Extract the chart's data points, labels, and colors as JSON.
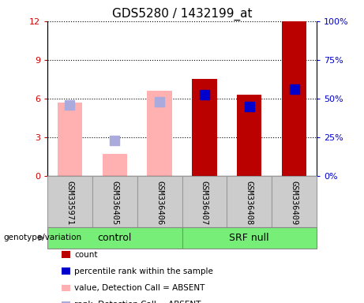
{
  "title": "GDS5280 / 1432199_at",
  "samples": [
    "GSM335971",
    "GSM336405",
    "GSM336406",
    "GSM336407",
    "GSM336408",
    "GSM336409"
  ],
  "ylim_left": [
    0,
    12
  ],
  "yticks_left": [
    0,
    3,
    6,
    9,
    12
  ],
  "ylim_right": [
    0,
    100
  ],
  "yticks_right": [
    0,
    25,
    50,
    75,
    100
  ],
  "left_axis_color": "#cc0000",
  "right_axis_color": "#0000cc",
  "count_color": "#bb0000",
  "rank_color": "#0000cc",
  "absent_value_color": "#ffb0b0",
  "absent_rank_color": "#aaaadd",
  "count_values": [
    0,
    0,
    0,
    7.5,
    6.3,
    12.0
  ],
  "rank_values_pct": [
    0,
    0,
    0,
    52.5,
    45.0,
    56.0
  ],
  "absent_value_values": [
    5.7,
    1.7,
    6.6,
    0,
    0,
    0
  ],
  "absent_rank_values_pct": [
    46.0,
    23.0,
    48.0,
    0,
    0,
    0
  ],
  "legend_items": [
    {
      "color": "#bb0000",
      "label": "count"
    },
    {
      "color": "#0000cc",
      "label": "percentile rank within the sample"
    },
    {
      "color": "#ffb0b0",
      "label": "value, Detection Call = ABSENT"
    },
    {
      "color": "#aaaadd",
      "label": "rank, Detection Call = ABSENT"
    }
  ],
  "group_spans": [
    {
      "label": "control",
      "start": 0,
      "end": 2
    },
    {
      "label": "SRF null",
      "start": 3,
      "end": 5
    }
  ],
  "title_fontsize": 11,
  "tick_fontsize": 8,
  "sample_fontsize": 7.5,
  "legend_fontsize": 7.5,
  "bar_width": 0.25,
  "rank_marker_size": 80,
  "plot_bg": "#ffffff",
  "sample_bg": "#cccccc",
  "group_bg": "#77ee77"
}
